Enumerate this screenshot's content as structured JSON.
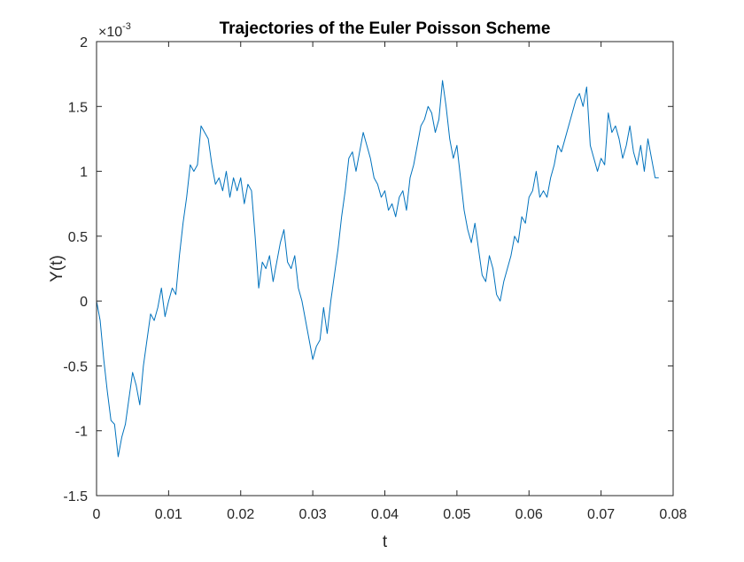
{
  "chart_data": {
    "type": "line",
    "title": "Trajectories of the Euler Poisson Scheme",
    "xlabel": "t",
    "ylabel": "Y(t)",
    "y_exponent": {
      "base": "×10",
      "power": "-3"
    },
    "xlim": [
      0,
      0.08
    ],
    "ylim": [
      -1.5,
      2
    ],
    "xticks": [
      "0",
      "0.01",
      "0.02",
      "0.03",
      "0.04",
      "0.05",
      "0.06",
      "0.07",
      "0.08"
    ],
    "yticks": [
      "-1.5",
      "-1",
      "-0.5",
      "0",
      "0.5",
      "1",
      "1.5",
      "2"
    ],
    "grid": false,
    "line_color": "#0072BD",
    "series": [
      {
        "x": [
          0,
          0.0005,
          0.001,
          0.0015,
          0.002,
          0.0025,
          0.003,
          0.0035,
          0.004,
          0.0045,
          0.005,
          0.0055,
          0.006,
          0.0065,
          0.007,
          0.0075,
          0.008,
          0.0085,
          0.009,
          0.0095,
          0.01,
          0.0105,
          0.011,
          0.0115,
          0.012,
          0.0125,
          0.013,
          0.0135,
          0.014,
          0.0145,
          0.015,
          0.0155,
          0.016,
          0.0165,
          0.017,
          0.0175,
          0.018,
          0.0185,
          0.019,
          0.0195,
          0.02,
          0.0205,
          0.021,
          0.0215,
          0.022,
          0.0225,
          0.023,
          0.0235,
          0.024,
          0.0245,
          0.025,
          0.0255,
          0.026,
          0.0265,
          0.027,
          0.0275,
          0.028,
          0.0285,
          0.029,
          0.0295,
          0.03,
          0.0305,
          0.031,
          0.0315,
          0.032,
          0.0325,
          0.033,
          0.0335,
          0.034,
          0.0345,
          0.035,
          0.0355,
          0.036,
          0.0365,
          0.037,
          0.0375,
          0.038,
          0.0385,
          0.039,
          0.0395,
          0.04,
          0.0405,
          0.041,
          0.0415,
          0.042,
          0.0425,
          0.043,
          0.0435,
          0.044,
          0.0445,
          0.045,
          0.0455,
          0.046,
          0.0465,
          0.047,
          0.0475,
          0.048,
          0.0485,
          0.049,
          0.0495,
          0.05,
          0.0505,
          0.051,
          0.0515,
          0.052,
          0.0525,
          0.053,
          0.0535,
          0.054,
          0.0545,
          0.055,
          0.0555,
          0.056,
          0.0565,
          0.057,
          0.0575,
          0.058,
          0.0585,
          0.059,
          0.0595,
          0.06,
          0.0605,
          0.061,
          0.0615,
          0.062,
          0.0625,
          0.063,
          0.0635,
          0.064,
          0.0645,
          0.065,
          0.0655,
          0.066,
          0.0665,
          0.067,
          0.0675,
          0.068,
          0.0685,
          0.069,
          0.0695,
          0.07,
          0.0705,
          0.071,
          0.0715,
          0.072,
          0.0725,
          0.073,
          0.0735,
          0.074,
          0.0745,
          0.075,
          0.0755,
          0.076,
          0.0765,
          0.077,
          0.0775,
          0.078
        ],
        "y": [
          0.0,
          -0.15,
          -0.45,
          -0.7,
          -0.92,
          -0.95,
          -1.2,
          -1.05,
          -0.95,
          -0.75,
          -0.55,
          -0.65,
          -0.8,
          -0.5,
          -0.3,
          -0.1,
          -0.15,
          -0.05,
          0.1,
          -0.12,
          0.0,
          0.1,
          0.05,
          0.35,
          0.6,
          0.8,
          1.05,
          1.0,
          1.05,
          1.35,
          1.3,
          1.25,
          1.05,
          0.9,
          0.95,
          0.85,
          1.0,
          0.8,
          0.95,
          0.85,
          0.95,
          0.75,
          0.9,
          0.85,
          0.5,
          0.1,
          0.3,
          0.25,
          0.35,
          0.15,
          0.3,
          0.45,
          0.55,
          0.3,
          0.25,
          0.35,
          0.1,
          0.0,
          -0.15,
          -0.3,
          -0.45,
          -0.35,
          -0.3,
          -0.05,
          -0.25,
          0.0,
          0.2,
          0.4,
          0.65,
          0.85,
          1.1,
          1.15,
          1.0,
          1.15,
          1.3,
          1.2,
          1.1,
          0.95,
          0.9,
          0.8,
          0.85,
          0.7,
          0.75,
          0.65,
          0.8,
          0.85,
          0.7,
          0.95,
          1.05,
          1.2,
          1.35,
          1.4,
          1.5,
          1.45,
          1.3,
          1.4,
          1.7,
          1.5,
          1.25,
          1.1,
          1.2,
          0.95,
          0.7,
          0.55,
          0.45,
          0.6,
          0.4,
          0.2,
          0.15,
          0.35,
          0.25,
          0.05,
          0.0,
          0.15,
          0.25,
          0.35,
          0.5,
          0.45,
          0.65,
          0.6,
          0.8,
          0.85,
          1.0,
          0.8,
          0.85,
          0.8,
          0.95,
          1.05,
          1.2,
          1.15,
          1.25,
          1.35,
          1.45,
          1.55,
          1.6,
          1.5,
          1.65,
          1.2,
          1.1,
          1.0,
          1.1,
          1.05,
          1.45,
          1.3,
          1.35,
          1.25,
          1.1,
          1.2,
          1.35,
          1.15,
          1.05,
          1.2,
          1.0,
          1.25,
          1.1,
          0.95,
          0.95
        ]
      }
    ]
  }
}
